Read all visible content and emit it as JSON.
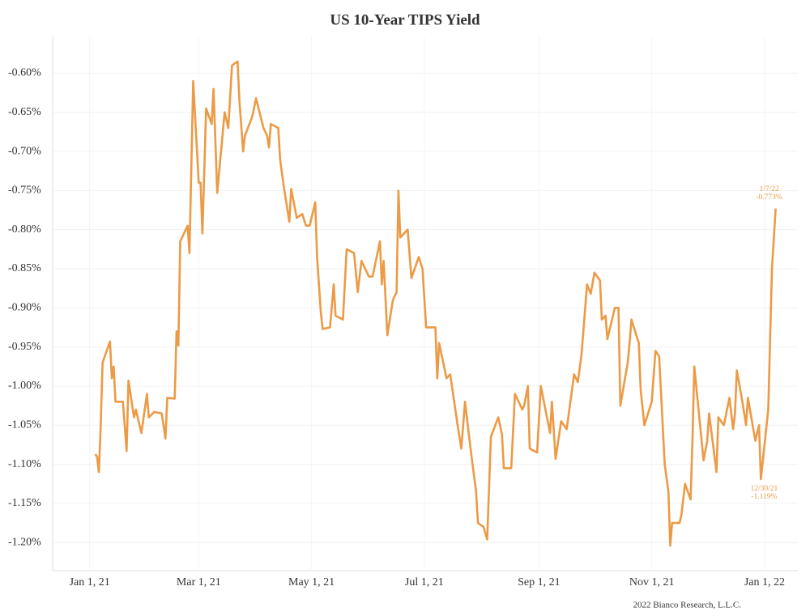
{
  "chart_data": {
    "type": "line",
    "title": "US 10-Year TIPS Yield",
    "source": "2022 Bianco Research, L.L.C.",
    "color": "#ec9a45",
    "grid": true,
    "xlim": [
      "2020-12-12",
      "2022-01-19"
    ],
    "xticks": [
      {
        "value": "2021-01-01",
        "label": "Jan 1, 21"
      },
      {
        "value": "2021-03-01",
        "label": "Mar 1, 21"
      },
      {
        "value": "2021-05-01",
        "label": "May 1, 21"
      },
      {
        "value": "2021-07-01",
        "label": "Jul 1, 21"
      },
      {
        "value": "2021-09-01",
        "label": "Sep 1, 21"
      },
      {
        "value": "2021-11-01",
        "label": "Nov 1, 21"
      },
      {
        "value": "2022-01-01",
        "label": "Jan 1, 22"
      }
    ],
    "ylim": [
      -1.236,
      -0.553
    ],
    "yticks": [
      {
        "value": -0.6,
        "label": "-0.60%"
      },
      {
        "value": -0.65,
        "label": "-0.65%"
      },
      {
        "value": -0.7,
        "label": "-0.70%"
      },
      {
        "value": -0.75,
        "label": "-0.75%"
      },
      {
        "value": -0.8,
        "label": "-0.80%"
      },
      {
        "value": -0.85,
        "label": "-0.85%"
      },
      {
        "value": -0.9,
        "label": "-0.90%"
      },
      {
        "value": -0.95,
        "label": "-0.95%"
      },
      {
        "value": -1.0,
        "label": "-1.00%"
      },
      {
        "value": -1.05,
        "label": "-1.05%"
      },
      {
        "value": -1.1,
        "label": "-1.10%"
      },
      {
        "value": -1.15,
        "label": "-1.15%"
      },
      {
        "value": -1.2,
        "label": "-1.20%"
      }
    ],
    "x": [
      "2021-01-04",
      "2021-01-05",
      "2021-01-06",
      "2021-01-07",
      "2021-01-08",
      "2021-01-12",
      "2021-01-13",
      "2021-01-14",
      "2021-01-15",
      "2021-01-19",
      "2021-01-21",
      "2021-01-22",
      "2021-01-25",
      "2021-01-26",
      "2021-01-29",
      "2021-02-01",
      "2021-02-02",
      "2021-02-05",
      "2021-02-09",
      "2021-02-11",
      "2021-02-12",
      "2021-02-16",
      "2021-02-17",
      "2021-02-18",
      "2021-02-19",
      "2021-02-23",
      "2021-02-24",
      "2021-02-26",
      "2021-03-01",
      "2021-03-02",
      "2021-03-03",
      "2021-03-05",
      "2021-03-08",
      "2021-03-09",
      "2021-03-11",
      "2021-03-15",
      "2021-03-17",
      "2021-03-19",
      "2021-03-22",
      "2021-03-23",
      "2021-03-25",
      "2021-03-26",
      "2021-03-30",
      "2021-04-01",
      "2021-04-05",
      "2021-04-07",
      "2021-04-08",
      "2021-04-09",
      "2021-04-13",
      "2021-04-14",
      "2021-04-16",
      "2021-04-19",
      "2021-04-20",
      "2021-04-23",
      "2021-04-26",
      "2021-04-28",
      "2021-04-30",
      "2021-05-03",
      "2021-05-04",
      "2021-05-06",
      "2021-05-07",
      "2021-05-11",
      "2021-05-13",
      "2021-05-14",
      "2021-05-18",
      "2021-05-20",
      "2021-05-24",
      "2021-05-26",
      "2021-05-28",
      "2021-06-01",
      "2021-06-03",
      "2021-06-07",
      "2021-06-08",
      "2021-06-09",
      "2021-06-11",
      "2021-06-14",
      "2021-06-16",
      "2021-06-17",
      "2021-06-18",
      "2021-06-22",
      "2021-06-24",
      "2021-06-28",
      "2021-06-30",
      "2021-07-02",
      "2021-07-07",
      "2021-07-08",
      "2021-07-09",
      "2021-07-13",
      "2021-07-15",
      "2021-07-19",
      "2021-07-21",
      "2021-07-23",
      "2021-07-26",
      "2021-07-29",
      "2021-07-30",
      "2021-08-02",
      "2021-08-04",
      "2021-08-06",
      "2021-08-10",
      "2021-08-12",
      "2021-08-13",
      "2021-08-17",
      "2021-08-19",
      "2021-08-23",
      "2021-08-24",
      "2021-08-26",
      "2021-08-27",
      "2021-08-31",
      "2021-09-02",
      "2021-09-07",
      "2021-09-08",
      "2021-09-10",
      "2021-09-13",
      "2021-09-16",
      "2021-09-20",
      "2021-09-22",
      "2021-09-24",
      "2021-09-27",
      "2021-09-29",
      "2021-10-01",
      "2021-10-04",
      "2021-10-05",
      "2021-10-07",
      "2021-10-08",
      "2021-10-12",
      "2021-10-14",
      "2021-10-15",
      "2021-10-19",
      "2021-10-20",
      "2021-10-21",
      "2021-10-25",
      "2021-10-26",
      "2021-10-28",
      "2021-11-01",
      "2021-11-03",
      "2021-11-05",
      "2021-11-08",
      "2021-11-10",
      "2021-11-11",
      "2021-11-12",
      "2021-11-16",
      "2021-11-17",
      "2021-11-19",
      "2021-11-22",
      "2021-11-23",
      "2021-11-24",
      "2021-11-29",
      "2021-12-01",
      "2021-12-02",
      "2021-12-06",
      "2021-12-07",
      "2021-12-10",
      "2021-12-13",
      "2021-12-15",
      "2021-12-16",
      "2021-12-17",
      "2021-12-20",
      "2021-12-22",
      "2021-12-23",
      "2021-12-27",
      "2021-12-28",
      "2021-12-29",
      "2021-12-30",
      "2022-01-03",
      "2022-01-05",
      "2022-01-07"
    ],
    "values": [
      -1.087,
      -1.09,
      -1.11,
      -1.05,
      -0.97,
      -0.943,
      -0.99,
      -0.975,
      -1.02,
      -1.02,
      -1.083,
      -0.993,
      -1.04,
      -1.03,
      -1.06,
      -1.01,
      -1.04,
      -1.033,
      -1.035,
      -1.067,
      -1.015,
      -1.016,
      -0.93,
      -0.948,
      -0.815,
      -0.795,
      -0.83,
      -0.61,
      -0.74,
      -0.74,
      -0.805,
      -0.645,
      -0.665,
      -0.62,
      -0.753,
      -0.65,
      -0.67,
      -0.59,
      -0.585,
      -0.635,
      -0.7,
      -0.68,
      -0.655,
      -0.632,
      -0.67,
      -0.68,
      -0.695,
      -0.665,
      -0.67,
      -0.71,
      -0.745,
      -0.79,
      -0.748,
      -0.785,
      -0.78,
      -0.795,
      -0.795,
      -0.765,
      -0.835,
      -0.905,
      -0.927,
      -0.925,
      -0.87,
      -0.91,
      -0.915,
      -0.825,
      -0.83,
      -0.88,
      -0.84,
      -0.86,
      -0.86,
      -0.815,
      -0.87,
      -0.84,
      -0.935,
      -0.89,
      -0.88,
      -0.75,
      -0.81,
      -0.8,
      -0.862,
      -0.835,
      -0.85,
      -0.925,
      -0.925,
      -0.99,
      -0.945,
      -0.99,
      -0.985,
      -1.05,
      -1.08,
      -1.02,
      -1.08,
      -1.135,
      -1.175,
      -1.18,
      -1.196,
      -1.065,
      -1.04,
      -1.062,
      -1.105,
      -1.105,
      -1.01,
      -1.03,
      -1.025,
      -1.0,
      -1.08,
      -1.085,
      -1.0,
      -1.06,
      -1.02,
      -1.093,
      -1.045,
      -1.055,
      -0.985,
      -0.995,
      -0.96,
      -0.87,
      -0.882,
      -0.855,
      -0.865,
      -0.915,
      -0.91,
      -0.94,
      -0.9,
      -0.9,
      -1.025,
      -0.97,
      -0.945,
      -0.915,
      -0.945,
      -1.005,
      -1.05,
      -1.02,
      -0.955,
      -0.962,
      -1.1,
      -1.135,
      -1.204,
      -1.175,
      -1.175,
      -1.165,
      -1.125,
      -1.145,
      -1.07,
      -0.975,
      -1.095,
      -1.07,
      -1.035,
      -1.11,
      -1.04,
      -1.05,
      -1.015,
      -1.055,
      -1.035,
      -0.98,
      -1.02,
      -1.05,
      -1.015,
      -1.07,
      -1.06,
      -1.05,
      -1.119,
      -1.03,
      -0.85,
      -0.773
    ],
    "annotations": [
      {
        "x": "2022-01-07",
        "y": -0.773,
        "lines": [
          "1/7/22",
          "-0.773%"
        ]
      },
      {
        "x": "2021-12-30",
        "y": -1.119,
        "lines": [
          "12/30/21",
          "-1.119%"
        ]
      }
    ]
  }
}
